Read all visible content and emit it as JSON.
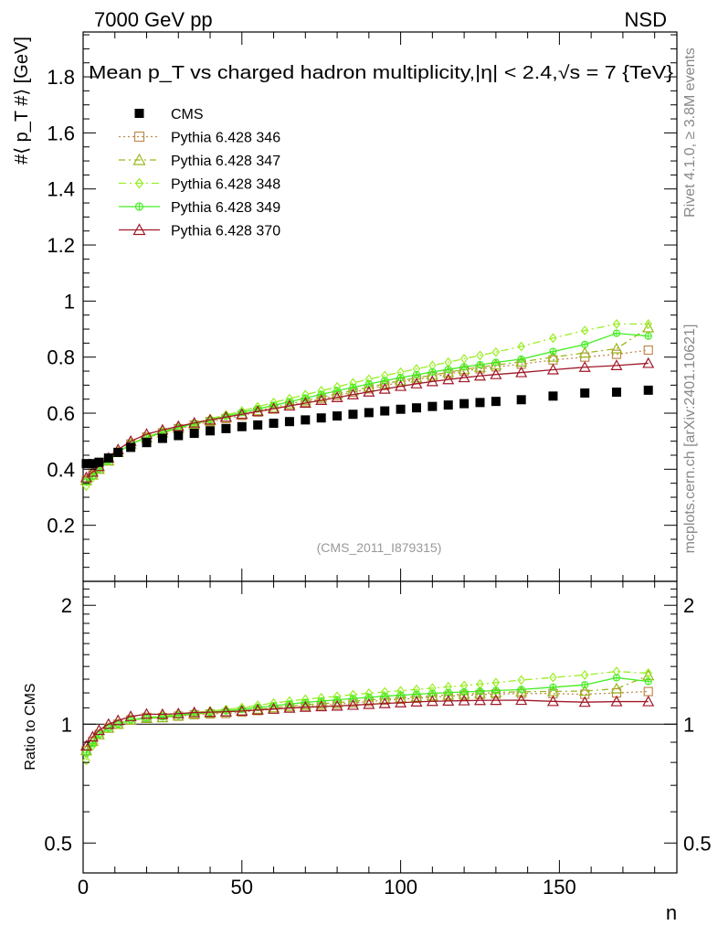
{
  "header": {
    "left": "7000 GeV pp",
    "right": "NSD"
  },
  "title": "Mean p_T vs charged hadron multiplicity,|η| < 2.4,√s = 7 {TeV}",
  "side_labels": {
    "rivet": "Rivet 4.1.0, ≥ 3.8M events",
    "mcplots": "mcplots.cern.ch [arXiv:2401.10621]"
  },
  "analysis_tag": "(CMS_2011_I879315)",
  "ylabel_main": "#⟨ p_T #⟩ [GeV]",
  "ylabel_ratio": "Ratio to CMS",
  "xlabel": "n",
  "chart_data": {
    "type": "scatter",
    "title": "Mean p_T vs charged hadron multiplicity, |η| < 2.4, √s = 7 TeV",
    "xlabel": "n",
    "ylabel": "⟨p_T⟩ [GeV]",
    "xlim": [
      0,
      187
    ],
    "ylim": [
      0,
      1.96
    ],
    "ratio_ylim": [
      0.42,
      2.3
    ],
    "x_ticks": [
      0,
      50,
      100,
      150
    ],
    "y_ticks": [
      0.2,
      0.4,
      0.6,
      0.8,
      1.0,
      1.2,
      1.4,
      1.6,
      1.8
    ],
    "y_tick_labels": [
      "0.2",
      "0.4",
      "0.6",
      "0.8",
      "1",
      "1.2",
      "1.4",
      "1.6",
      "1.8"
    ],
    "ratio_ticks": [
      0.5,
      1,
      2
    ],
    "ratio_tick_labels": [
      "0.5",
      "1",
      "2"
    ],
    "x_tick_labels": [
      "0",
      "50",
      "100",
      "150"
    ],
    "x": [
      1,
      3,
      5,
      8,
      11,
      15,
      20,
      25,
      30,
      35,
      40,
      45,
      50,
      55,
      60,
      65,
      70,
      75,
      80,
      85,
      90,
      95,
      100,
      105,
      110,
      115,
      120,
      125,
      130,
      138,
      148,
      158,
      168,
      178
    ],
    "cms": {
      "name": "CMS",
      "values": [
        0.42,
        0.42,
        0.425,
        0.44,
        0.46,
        0.478,
        0.495,
        0.51,
        0.52,
        0.528,
        0.537,
        0.545,
        0.552,
        0.558,
        0.564,
        0.57,
        0.576,
        0.583,
        0.59,
        0.596,
        0.602,
        0.608,
        0.614,
        0.619,
        0.624,
        0.629,
        0.634,
        0.638,
        0.642,
        0.648,
        0.661,
        0.672,
        0.675,
        0.682
      ]
    },
    "series": [
      {
        "name": "Pythia 6.428 346",
        "color": "#c08a4f",
        "dash": "2,3",
        "marker": "square",
        "values": [
          0.36,
          0.38,
          0.4,
          0.43,
          0.46,
          0.49,
          0.515,
          0.53,
          0.545,
          0.558,
          0.57,
          0.58,
          0.592,
          0.604,
          0.615,
          0.627,
          0.639,
          0.651,
          0.663,
          0.675,
          0.687,
          0.699,
          0.71,
          0.72,
          0.73,
          0.74,
          0.75,
          0.758,
          0.765,
          0.775,
          0.79,
          0.8,
          0.81,
          0.825
        ]
      },
      {
        "name": "Pythia 6.428 347",
        "color": "#99b81a",
        "dash": "7,4,2,4",
        "marker": "triangle",
        "values": [
          0.36,
          0.38,
          0.4,
          0.43,
          0.46,
          0.49,
          0.512,
          0.53,
          0.546,
          0.56,
          0.573,
          0.585,
          0.597,
          0.609,
          0.621,
          0.633,
          0.645,
          0.657,
          0.669,
          0.681,
          0.693,
          0.705,
          0.716,
          0.726,
          0.736,
          0.746,
          0.756,
          0.764,
          0.772,
          0.783,
          0.8,
          0.815,
          0.83,
          0.905
        ]
      },
      {
        "name": "Pythia 6.428 348",
        "color": "#99ee22",
        "dash": "8,4,2,4",
        "marker": "diamond",
        "values": [
          0.34,
          0.37,
          0.4,
          0.43,
          0.46,
          0.49,
          0.515,
          0.535,
          0.55,
          0.565,
          0.58,
          0.594,
          0.608,
          0.623,
          0.638,
          0.652,
          0.666,
          0.68,
          0.694,
          0.708,
          0.721,
          0.734,
          0.746,
          0.758,
          0.77,
          0.782,
          0.794,
          0.806,
          0.818,
          0.838,
          0.868,
          0.895,
          0.918,
          0.918
        ]
      },
      {
        "name": "Pythia 6.428 349",
        "color": "#44ee22",
        "dash": "",
        "marker": "circle-cross",
        "values": [
          0.355,
          0.375,
          0.4,
          0.43,
          0.46,
          0.49,
          0.513,
          0.532,
          0.548,
          0.562,
          0.576,
          0.589,
          0.602,
          0.615,
          0.628,
          0.641,
          0.654,
          0.667,
          0.68,
          0.692,
          0.704,
          0.716,
          0.727,
          0.737,
          0.747,
          0.756,
          0.765,
          0.773,
          0.781,
          0.793,
          0.82,
          0.845,
          0.885,
          0.875
        ]
      },
      {
        "name": "Pythia 6.428 370",
        "color": "#a01828",
        "dash": "",
        "marker": "triangle",
        "values": [
          0.37,
          0.39,
          0.41,
          0.44,
          0.47,
          0.5,
          0.525,
          0.54,
          0.553,
          0.565,
          0.576,
          0.586,
          0.596,
          0.606,
          0.616,
          0.626,
          0.636,
          0.646,
          0.656,
          0.666,
          0.676,
          0.686,
          0.696,
          0.705,
          0.713,
          0.72,
          0.727,
          0.733,
          0.738,
          0.745,
          0.755,
          0.764,
          0.77,
          0.778
        ]
      }
    ]
  }
}
